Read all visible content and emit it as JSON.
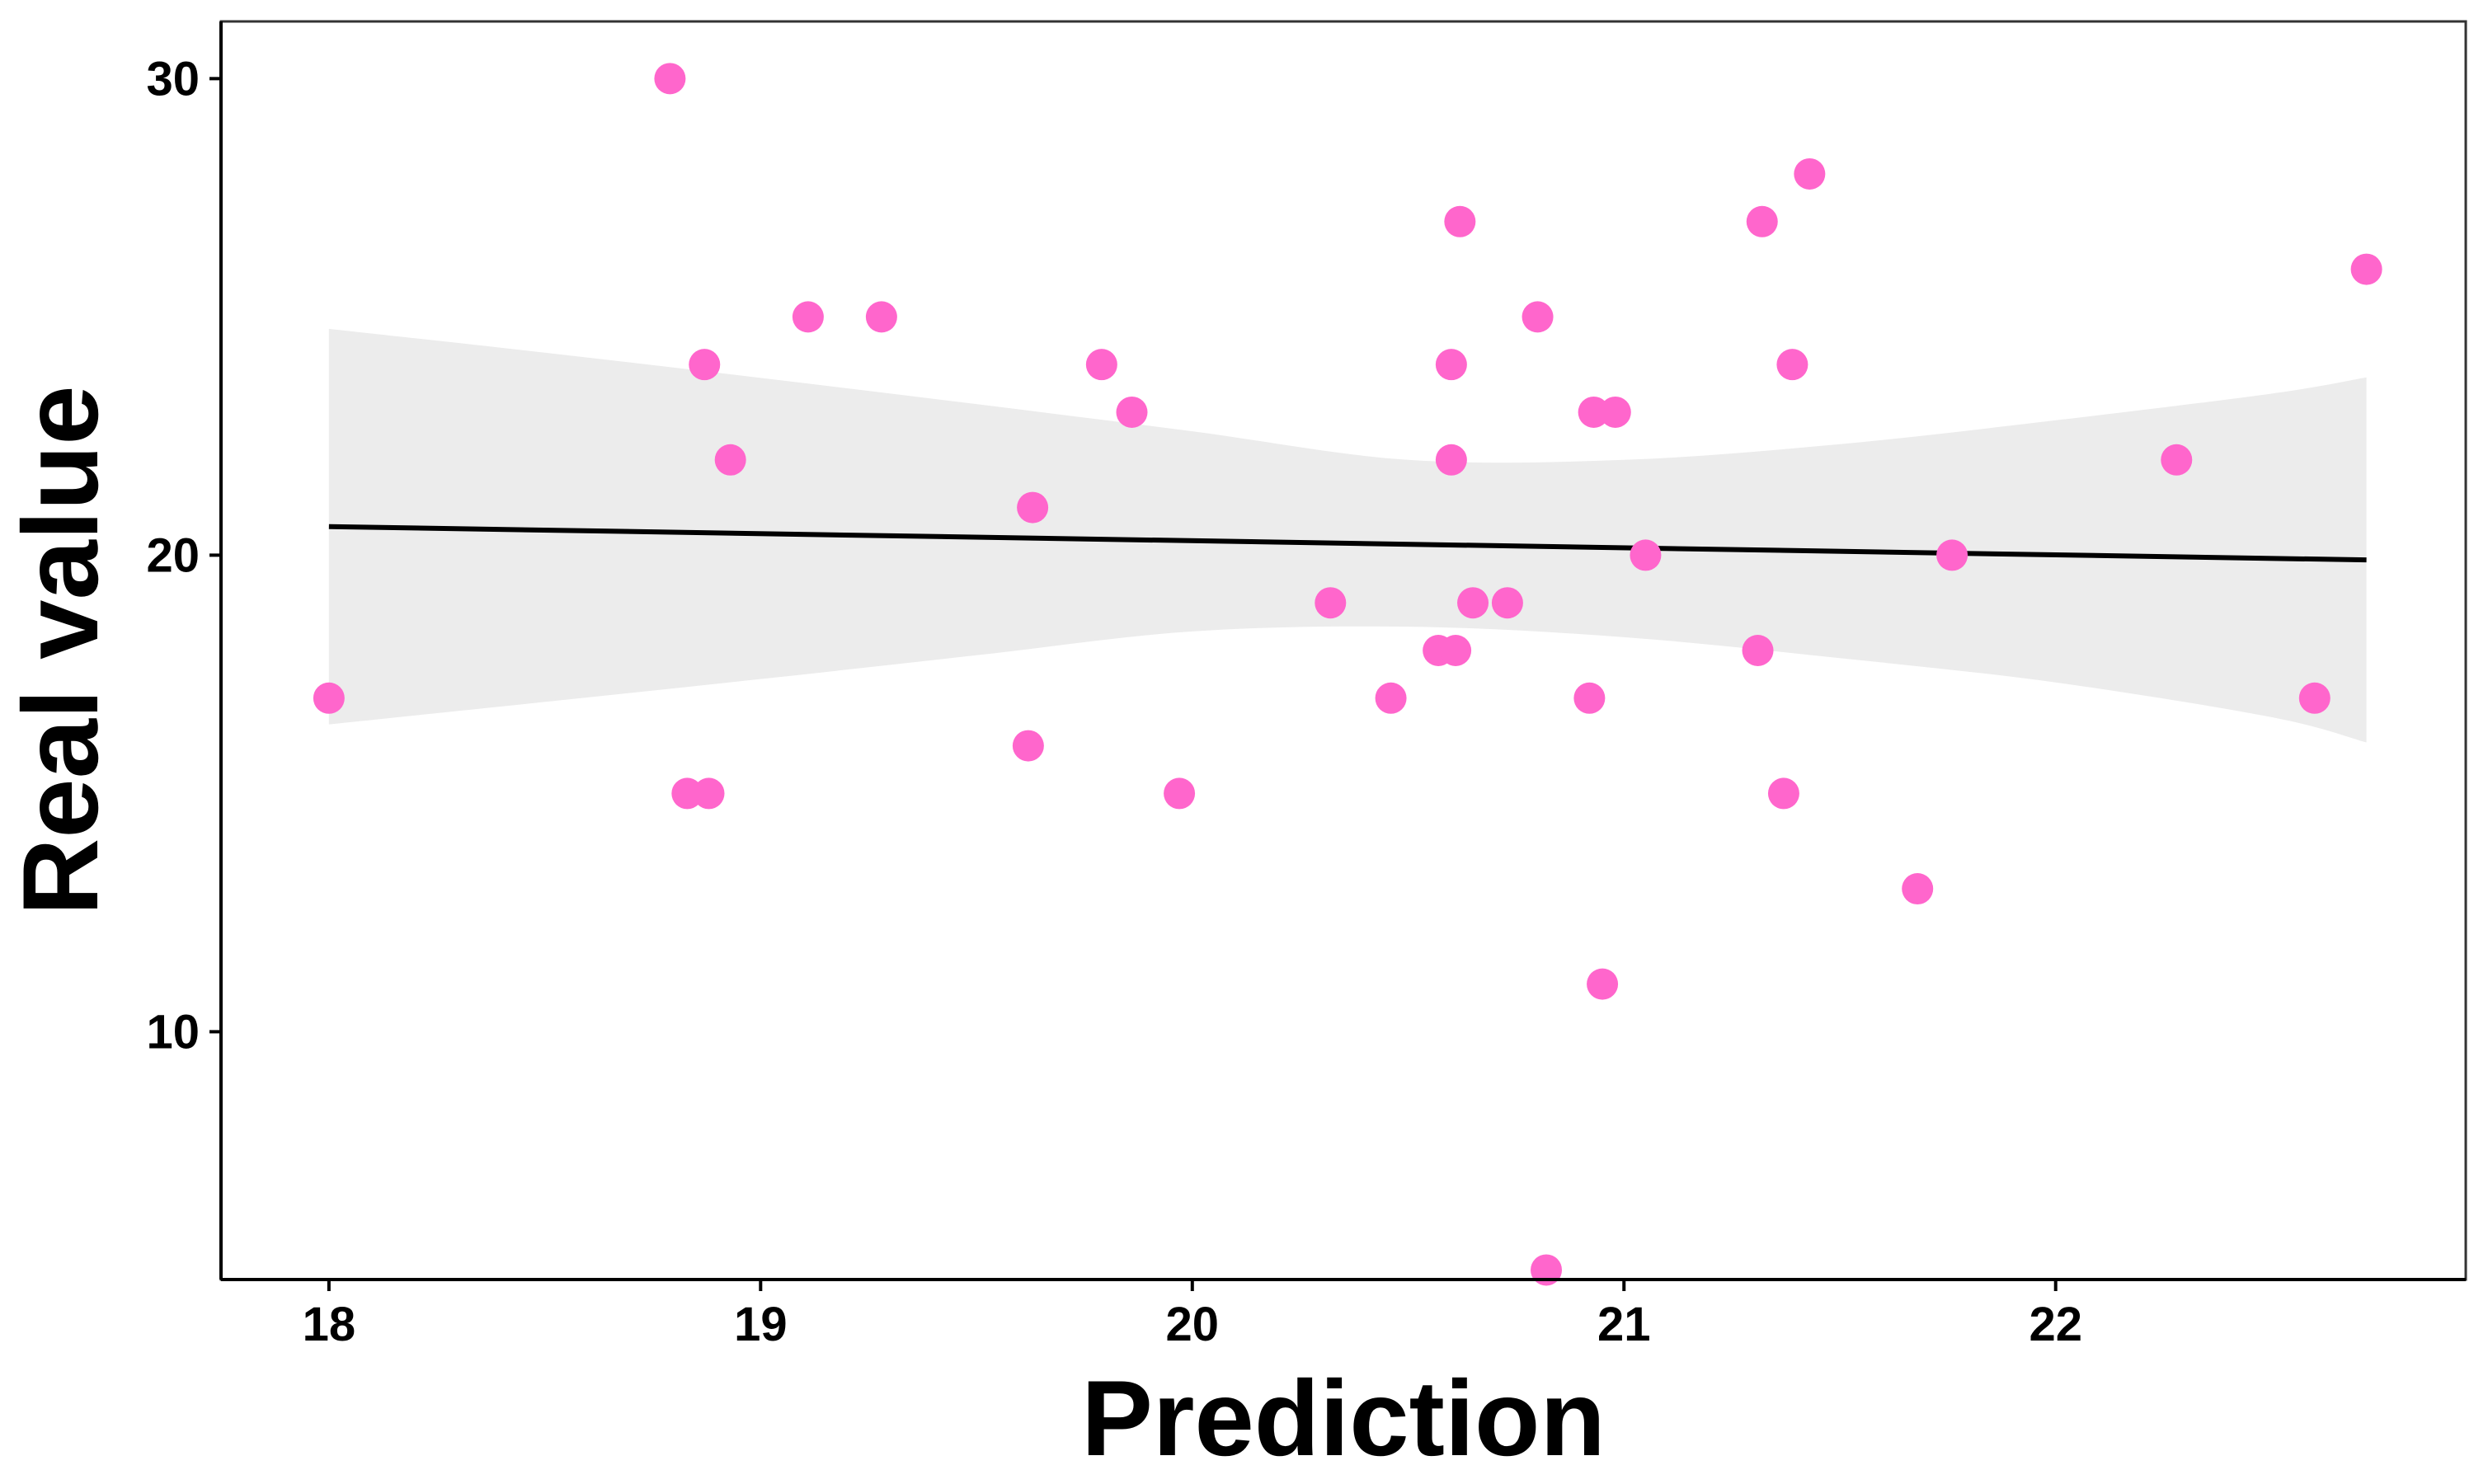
{
  "chart_data": {
    "type": "scatter",
    "title": "",
    "xlabel": "Prediction",
    "ylabel": "Real value",
    "xlim": [
      17.75,
      22.95
    ],
    "ylim": [
      4.8,
      31.2
    ],
    "x_ticks": [
      18,
      19,
      20,
      21,
      22
    ],
    "y_ticks": [
      10,
      20,
      30
    ],
    "grid": false,
    "legend": "none",
    "point_color": "#ff66cc",
    "line_color": "#000000",
    "band_color": "#ececec",
    "series": [
      {
        "points": [
          [
            18.0,
            17
          ],
          [
            18.79,
            30
          ],
          [
            18.83,
            15
          ],
          [
            18.88,
            15
          ],
          [
            18.87,
            24
          ],
          [
            18.93,
            22
          ],
          [
            19.11,
            25
          ],
          [
            19.28,
            25
          ],
          [
            19.62,
            16
          ],
          [
            19.63,
            21
          ],
          [
            19.79,
            24
          ],
          [
            19.86,
            23
          ],
          [
            19.97,
            15
          ],
          [
            20.32,
            19
          ],
          [
            20.46,
            17
          ],
          [
            20.57,
            18
          ],
          [
            20.61,
            18
          ],
          [
            20.6,
            24
          ],
          [
            20.6,
            22
          ],
          [
            20.62,
            27
          ],
          [
            20.65,
            19
          ],
          [
            20.73,
            19
          ],
          [
            20.8,
            25
          ],
          [
            20.82,
            5
          ],
          [
            20.92,
            17
          ],
          [
            20.93,
            23
          ],
          [
            20.95,
            11
          ],
          [
            20.98,
            23
          ],
          [
            21.05,
            20
          ],
          [
            21.31,
            18
          ],
          [
            21.32,
            27
          ],
          [
            21.37,
            15
          ],
          [
            21.39,
            24
          ],
          [
            21.43,
            28
          ],
          [
            21.68,
            13
          ],
          [
            21.76,
            20
          ],
          [
            22.28,
            22
          ],
          [
            22.6,
            17
          ],
          [
            22.72,
            26
          ]
        ]
      }
    ],
    "fit_line": {
      "x": [
        18.0,
        22.72
      ],
      "y": [
        20.6,
        19.9
      ]
    },
    "confidence_band": {
      "x": [
        18.0,
        18.5,
        19.0,
        19.5,
        20.0,
        20.5,
        21.0,
        21.5,
        22.0,
        22.5,
        22.72
      ],
      "upper": [
        24.75,
        24.25,
        23.72,
        23.17,
        22.6,
        22.0,
        22.0,
        22.33,
        22.83,
        23.39,
        23.73
      ],
      "lower": [
        16.45,
        16.92,
        17.4,
        17.9,
        18.4,
        18.5,
        18.28,
        17.84,
        17.33,
        16.6,
        16.07
      ]
    }
  }
}
